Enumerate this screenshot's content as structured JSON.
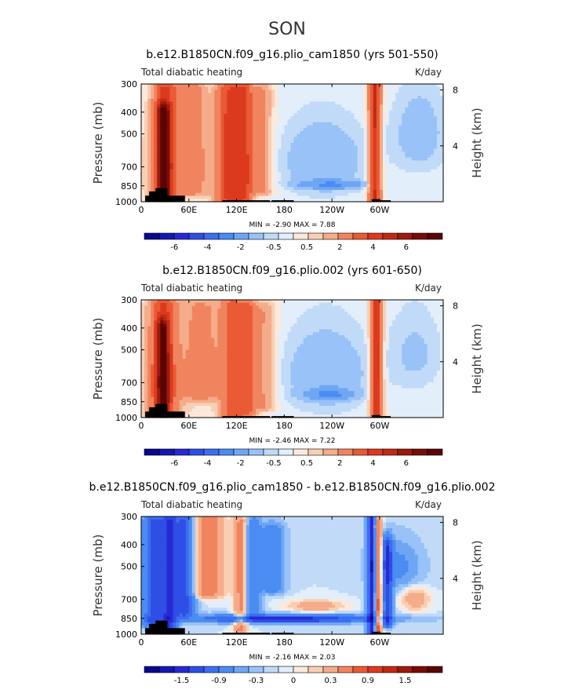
{
  "figure": {
    "suptitle": "SON"
  },
  "chart_data": [
    {
      "type": "heatmap",
      "title": "b.e12.B1850CN.f09_g16.plio_cam1850 (yrs 501-550)",
      "left_label": "Total diabatic heating",
      "right_label": "K/day",
      "ylabel": "Pressure (mb)",
      "ylabel_right": "Height (km)",
      "x_ticks": [
        "0",
        "60E",
        "120E",
        "180",
        "120W",
        "60W"
      ],
      "x_tick_values": [
        0,
        60,
        120,
        180,
        240,
        300
      ],
      "xlim": [
        0,
        380
      ],
      "y_ticks": [
        "300",
        "400",
        "500",
        "700",
        "850",
        "1000"
      ],
      "y_tick_values": [
        300,
        400,
        500,
        700,
        850,
        1000
      ],
      "ylim": [
        1000,
        300
      ],
      "right_ticks": [
        "8",
        "4"
      ],
      "right_tick_values": [
        8,
        4
      ],
      "min_max_text": "MIN =   -2.90   MAX =    7.88",
      "colorbar": {
        "levels": [
          -8,
          -7,
          -6,
          -5,
          -4,
          -3,
          -2,
          -1,
          -0.5,
          -0.25,
          0,
          0.25,
          0.5,
          1,
          2,
          3,
          4,
          5,
          6,
          7,
          8
        ],
        "labels": [
          "-6",
          "-4",
          "-2",
          "-0.5",
          "0.5",
          "2",
          "4",
          "6"
        ],
        "colors": [
          "#08088c",
          "#1616b4",
          "#2828d4",
          "#2e4ee6",
          "#3c6ef0",
          "#4a8cf2",
          "#6ea6f4",
          "#98c2f8",
          "#c0daf8",
          "#e2eefa",
          "#fce9dc",
          "#f8cfb4",
          "#f4ac8a",
          "#f0845e",
          "#ea5a34",
          "#dc3a1e",
          "#c02a14",
          "#9c1a0e",
          "#7a0c08",
          "#5a0404"
        ]
      },
      "features": [
        {
          "kind": "column",
          "x": 30,
          "w": 14,
          "p_top": 320,
          "p_bot": 990,
          "v": 3.2
        },
        {
          "kind": "column",
          "x": 28,
          "w": 8,
          "p_top": 400,
          "p_bot": 980,
          "v": 5
        },
        {
          "kind": "column",
          "x": 62,
          "w": 18,
          "p_top": 320,
          "p_bot": 900,
          "v": 1.5
        },
        {
          "kind": "column",
          "x": 105,
          "w": 12,
          "p_top": 330,
          "p_bot": 980,
          "v": 2.2
        },
        {
          "kind": "column",
          "x": 120,
          "w": 12,
          "p_top": 320,
          "p_bot": 980,
          "v": 2.8
        },
        {
          "kind": "column",
          "x": 132,
          "w": 8,
          "p_top": 330,
          "p_bot": 960,
          "v": 2
        },
        {
          "kind": "column",
          "x": 150,
          "w": 14,
          "p_top": 330,
          "p_bot": 900,
          "v": 1.2
        },
        {
          "kind": "column",
          "x": 294,
          "w": 7,
          "p_top": 310,
          "p_bot": 990,
          "v": 4.2
        },
        {
          "kind": "blob",
          "x": 228,
          "y": 660,
          "rx": 55,
          "ry": 260,
          "v": -1
        },
        {
          "kind": "blob",
          "x": 240,
          "y": 840,
          "rx": 40,
          "ry": 35,
          "v": -1.8
        },
        {
          "kind": "blob",
          "x": 350,
          "y": 500,
          "rx": 35,
          "ry": 230,
          "v": -0.8
        },
        {
          "kind": "blob",
          "x": 50,
          "y": 700,
          "rx": 80,
          "ry": 300,
          "v": 0.4
        }
      ]
    },
    {
      "type": "heatmap",
      "title": "b.e12.B1850CN.f09_g16.plio.002 (yrs 601-650)",
      "left_label": "Total diabatic heating",
      "right_label": "K/day",
      "ylabel": "Pressure (mb)",
      "ylabel_right": "Height (km)",
      "x_ticks": [
        "0",
        "60E",
        "120E",
        "180",
        "120W",
        "60W"
      ],
      "x_tick_values": [
        0,
        60,
        120,
        180,
        240,
        300
      ],
      "xlim": [
        0,
        380
      ],
      "y_ticks": [
        "300",
        "400",
        "500",
        "700",
        "850",
        "1000"
      ],
      "y_tick_values": [
        300,
        400,
        500,
        700,
        850,
        1000
      ],
      "ylim": [
        1000,
        300
      ],
      "right_ticks": [
        "8",
        "4"
      ],
      "right_tick_values": [
        8,
        4
      ],
      "min_max_text": "MIN =   -2.46   MAX =    7.22",
      "colorbar": {
        "levels": [
          -8,
          -7,
          -6,
          -5,
          -4,
          -3,
          -2,
          -1,
          -0.5,
          -0.25,
          0,
          0.25,
          0.5,
          1,
          2,
          3,
          4,
          5,
          6,
          7,
          8
        ],
        "labels": [
          "-6",
          "-4",
          "-2",
          "-0.5",
          "0.5",
          "2",
          "4",
          "6"
        ],
        "colors": [
          "#08088c",
          "#1616b4",
          "#2828d4",
          "#2e4ee6",
          "#3c6ef0",
          "#4a8cf2",
          "#6ea6f4",
          "#98c2f8",
          "#c0daf8",
          "#e2eefa",
          "#fce9dc",
          "#f8cfb4",
          "#f4ac8a",
          "#f0845e",
          "#ea5a34",
          "#dc3a1e",
          "#c02a14",
          "#9c1a0e",
          "#7a0c08",
          "#5a0404"
        ]
      },
      "features": [
        {
          "kind": "column",
          "x": 28,
          "w": 16,
          "p_top": 320,
          "p_bot": 990,
          "v": 3
        },
        {
          "kind": "column",
          "x": 27,
          "w": 8,
          "p_top": 400,
          "p_bot": 980,
          "v": 4.5
        },
        {
          "kind": "column",
          "x": 75,
          "w": 22,
          "p_top": 330,
          "p_bot": 800,
          "v": 1.2
        },
        {
          "kind": "column",
          "x": 115,
          "w": 14,
          "p_top": 320,
          "p_bot": 980,
          "v": 2.4
        },
        {
          "kind": "column",
          "x": 134,
          "w": 10,
          "p_top": 330,
          "p_bot": 960,
          "v": 2
        },
        {
          "kind": "column",
          "x": 155,
          "w": 14,
          "p_top": 340,
          "p_bot": 900,
          "v": 1
        },
        {
          "kind": "column",
          "x": 296,
          "w": 7,
          "p_top": 310,
          "p_bot": 990,
          "v": 4
        },
        {
          "kind": "blob",
          "x": 232,
          "y": 640,
          "rx": 55,
          "ry": 280,
          "v": -1
        },
        {
          "kind": "blob",
          "x": 238,
          "y": 790,
          "rx": 30,
          "ry": 40,
          "v": -1.7
        },
        {
          "kind": "blob",
          "x": 345,
          "y": 520,
          "rx": 35,
          "ry": 230,
          "v": -0.6
        },
        {
          "kind": "blob",
          "x": 50,
          "y": 700,
          "rx": 80,
          "ry": 300,
          "v": 0.4
        }
      ]
    },
    {
      "type": "heatmap",
      "title": "b.e12.B1850CN.f09_g16.plio_cam1850 - b.e12.B1850CN.f09_g16.plio.002",
      "left_label": "Total diabatic heating",
      "right_label": "K/day",
      "ylabel": "Pressure (mb)",
      "ylabel_right": "Height (km)",
      "x_ticks": [
        "0",
        "60E",
        "120E",
        "180",
        "120W",
        "60W"
      ],
      "x_tick_values": [
        0,
        60,
        120,
        180,
        240,
        300
      ],
      "xlim": [
        0,
        380
      ],
      "y_ticks": [
        "300",
        "400",
        "500",
        "700",
        "850",
        "1000"
      ],
      "y_tick_values": [
        300,
        400,
        500,
        700,
        850,
        1000
      ],
      "ylim": [
        1000,
        300
      ],
      "right_ticks": [
        "8",
        "4"
      ],
      "right_tick_values": [
        8,
        4
      ],
      "min_max_text": "MIN =   -2.16   MAX =    2.03",
      "colorbar": {
        "levels": [
          -2.1,
          -1.8,
          -1.5,
          -1.2,
          -0.9,
          -0.6,
          -0.3,
          -0.15,
          -0.05,
          0,
          0.05,
          0.15,
          0.3,
          0.6,
          0.9,
          1.2,
          1.5,
          1.8,
          2.1
        ],
        "labels": [
          "-1.5",
          "-0.9",
          "-0.3",
          "0",
          "0.3",
          "0.9",
          "1.5"
        ],
        "colors": [
          "#08088c",
          "#1616b4",
          "#2828d4",
          "#2e4ee6",
          "#3c6ef0",
          "#4a8cf2",
          "#6ea6f4",
          "#98c2f8",
          "#c0daf8",
          "#e2eefa",
          "#fce9dc",
          "#f8cfb4",
          "#f4ac8a",
          "#f0845e",
          "#ea5a34",
          "#dc3a1e",
          "#c02a14",
          "#9c1a0e",
          "#7a0c08",
          "#5a0404"
        ]
      },
      "features": [
        {
          "kind": "column",
          "x": 15,
          "w": 12,
          "p_top": 320,
          "p_bot": 900,
          "v": -1
        },
        {
          "kind": "column",
          "x": 35,
          "w": 10,
          "p_top": 320,
          "p_bot": 980,
          "v": -1.2
        },
        {
          "kind": "column",
          "x": 55,
          "w": 12,
          "p_top": 320,
          "p_bot": 800,
          "v": -1
        },
        {
          "kind": "column",
          "x": 85,
          "w": 18,
          "p_top": 310,
          "p_bot": 650,
          "v": 0.9
        },
        {
          "kind": "column",
          "x": 125,
          "w": 8,
          "p_top": 320,
          "p_bot": 960,
          "v": 0.7
        },
        {
          "kind": "column",
          "x": 140,
          "w": 10,
          "p_top": 330,
          "p_bot": 800,
          "v": -0.5
        },
        {
          "kind": "column",
          "x": 165,
          "w": 14,
          "p_top": 360,
          "p_bot": 620,
          "v": -0.6
        },
        {
          "kind": "column",
          "x": 291,
          "w": 6,
          "p_top": 310,
          "p_bot": 990,
          "v": -1.6
        },
        {
          "kind": "column",
          "x": 297,
          "w": 5,
          "p_top": 330,
          "p_bot": 980,
          "v": 1.4
        },
        {
          "kind": "column",
          "x": 310,
          "w": 6,
          "p_top": 400,
          "p_bot": 900,
          "v": -1
        },
        {
          "kind": "blob",
          "x": 180,
          "y": 855,
          "rx": 110,
          "ry": 35,
          "v": -1.4
        },
        {
          "kind": "blob",
          "x": 220,
          "y": 750,
          "rx": 30,
          "ry": 40,
          "v": 0.6
        },
        {
          "kind": "blob",
          "x": 345,
          "y": 700,
          "rx": 15,
          "ry": 70,
          "v": 0.6
        },
        {
          "kind": "blob",
          "x": 320,
          "y": 500,
          "rx": 30,
          "ry": 120,
          "v": -0.4
        }
      ]
    }
  ]
}
